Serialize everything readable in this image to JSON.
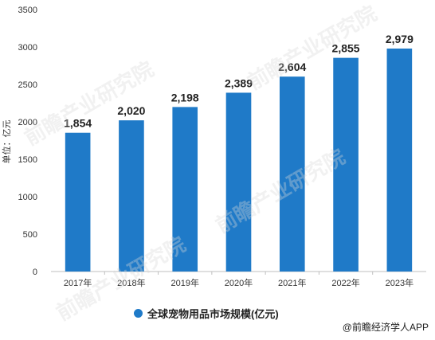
{
  "chart_data": {
    "type": "bar",
    "categories": [
      "2017年",
      "2018年",
      "2019年",
      "2020年",
      "2021年",
      "2022年",
      "2023年"
    ],
    "series": [
      {
        "name": "全球宠物用品市场规模(亿元)",
        "values": [
          1854,
          2020,
          2198,
          2389,
          2604,
          2855,
          2979
        ],
        "data_labels": [
          "1,854",
          "2,020",
          "2,198",
          "2,389",
          "2,604",
          "2,855",
          "2,979"
        ]
      }
    ],
    "ylabel": "单位：亿元",
    "ylim": [
      0,
      3500
    ],
    "yticks": [
      0,
      500,
      1000,
      1500,
      2000,
      2500,
      3000,
      3500
    ],
    "grid": false,
    "legend_position": "bottom",
    "colors": {
      "bar": "#1f7ac8",
      "axis": "#bfbfbf"
    }
  },
  "legend": {
    "label": "全球宠物用品市场规模(亿元)"
  },
  "footer": {
    "credit": "@前瞻经济学人APP"
  },
  "watermark": {
    "text": "前瞻产业研究院"
  }
}
